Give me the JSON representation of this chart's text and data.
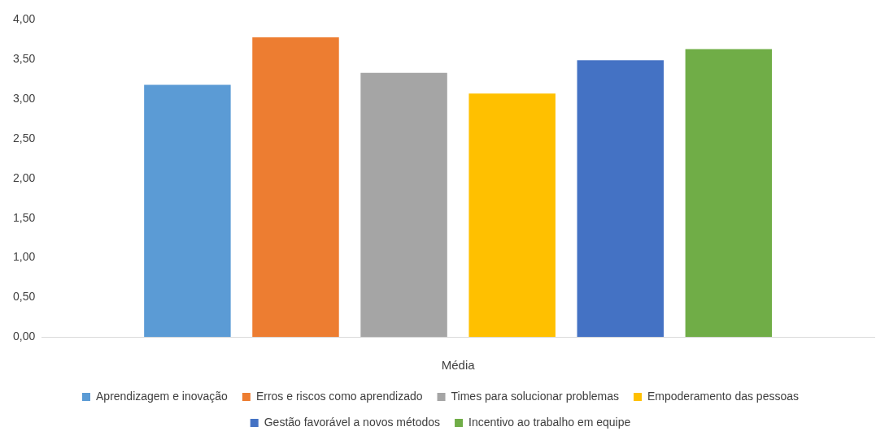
{
  "chart_data": {
    "type": "bar",
    "xlabel": "Média",
    "categories": [
      null
    ],
    "series": [
      {
        "name": "Aprendizagem e inovação",
        "color": "#5b9bd5",
        "values": [
          3.18
        ]
      },
      {
        "name": "Erros e riscos como aprendizado",
        "color": "#ed7d31",
        "values": [
          3.78
        ]
      },
      {
        "name": "Times para solucionar problemas",
        "color": "#a5a5a5",
        "values": [
          3.33
        ]
      },
      {
        "name": "Empoderamento das pessoas",
        "color": "#ffc000",
        "values": [
          3.07
        ]
      },
      {
        "name": "Gestão favorável a novos métodos",
        "color": "#4472c4",
        "values": [
          3.49
        ]
      },
      {
        "name": "Incentivo ao trabalho em equipe",
        "color": "#70ad47",
        "values": [
          3.63
        ]
      }
    ],
    "ylim": [
      0,
      4
    ],
    "yticks": [
      {
        "value": 0,
        "label": "0,00"
      },
      {
        "value": 0.5,
        "label": "0,50"
      },
      {
        "value": 1,
        "label": "1,00"
      },
      {
        "value": 1.5,
        "label": "1,50"
      },
      {
        "value": 2,
        "label": "2,00"
      },
      {
        "value": 2.5,
        "label": "2,50"
      },
      {
        "value": 3,
        "label": "3,00"
      },
      {
        "value": 3.5,
        "label": "3,50"
      },
      {
        "value": 4,
        "label": "4,00"
      }
    ],
    "grid": false,
    "legend": "bottom"
  }
}
